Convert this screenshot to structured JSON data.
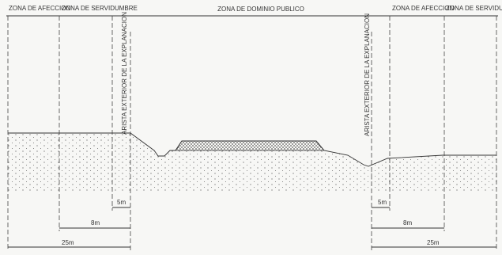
{
  "zones": {
    "top": [
      {
        "label": "ZONA DE AFECCION"
      },
      {
        "label": "ZONA DE SERVIDUMBRE"
      },
      {
        "label": "ZONA DE DOMINIO PUBLICO"
      },
      {
        "label": "ZONA DE AFECCION"
      },
      {
        "label": "ZONA DE SERVIDUMBRE"
      }
    ]
  },
  "edges": [
    {
      "label": "ARISTA EXTERIOR DE LA EXPLANACION"
    },
    {
      "label": "ARISTA EXTERIOR DE LA EXPLANACION"
    }
  ],
  "dimensions": {
    "left": [
      "5m",
      "8m",
      "25m"
    ],
    "right": [
      "5m",
      "8m",
      "25m"
    ]
  }
}
